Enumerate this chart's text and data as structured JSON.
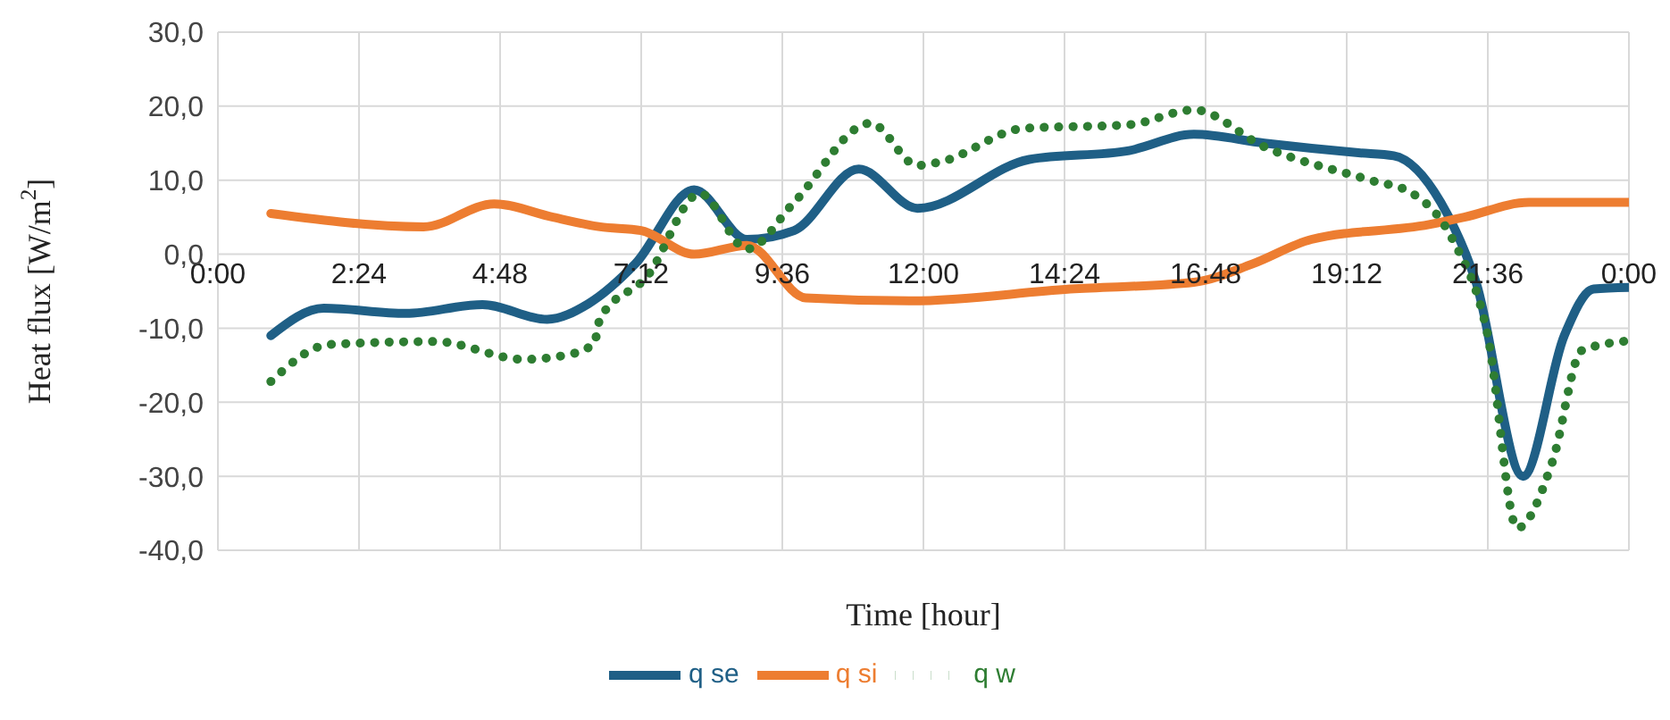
{
  "chart_data": {
    "type": "line",
    "xlabel": "Time [hour]",
    "ylabel": "Heat flux [W/m$^{2}$]",
    "xlim": [
      0,
      24
    ],
    "xticks": [
      {
        "value": 0,
        "label": "0:00"
      },
      {
        "value": 2.4,
        "label": "2:24"
      },
      {
        "value": 4.8,
        "label": "4:48"
      },
      {
        "value": 7.2,
        "label": "7:12"
      },
      {
        "value": 9.6,
        "label": "9:36"
      },
      {
        "value": 12,
        "label": "12:00"
      },
      {
        "value": 14.4,
        "label": "14:24"
      },
      {
        "value": 16.8,
        "label": "16:48"
      },
      {
        "value": 19.2,
        "label": "19:12"
      },
      {
        "value": 21.6,
        "label": "21:36"
      },
      {
        "value": 24,
        "label": "0:00"
      }
    ],
    "ylim": [
      -40,
      30
    ],
    "yticks": [
      {
        "value": -40,
        "label": "-40,0"
      },
      {
        "value": -30,
        "label": "-30,0"
      },
      {
        "value": -20,
        "label": "-20,0"
      },
      {
        "value": -10,
        "label": "-10,0"
      },
      {
        "value": 0,
        "label": "0,0"
      },
      {
        "value": 10,
        "label": "10,0"
      },
      {
        "value": 20,
        "label": "20,0"
      },
      {
        "value": 30,
        "label": "30,0"
      }
    ],
    "grid": true,
    "legend": "bottom",
    "marker": "none",
    "series": [
      {
        "name": "q se",
        "color": "#1f5f86",
        "line_style": "solid",
        "x": [
          0.9,
          1.8,
          3.2,
          4.5,
          5.6,
          6.3,
          7.1,
          8.1,
          9.0,
          9.8,
          10.9,
          11.9,
          13.8,
          15.5,
          16.6,
          17.8,
          19.4,
          20.0,
          20.8,
          21.4,
          22.2,
          22.9,
          23.4,
          24
        ],
        "values": [
          -11,
          -7.3,
          -8,
          -6.8,
          -8.8,
          -6.7,
          -1.3,
          8.7,
          2,
          3.2,
          11.5,
          6.2,
          12.8,
          14,
          16.2,
          15,
          13.7,
          13.3,
          7,
          -3.8,
          -30,
          -11,
          -4.7,
          -4.5
        ]
      },
      {
        "name": "q si",
        "color": "#ed7d31",
        "line_style": "solid",
        "x": [
          0.9,
          3.5,
          4.7,
          5.7,
          6.5,
          7.2,
          8.1,
          9.0,
          10.0,
          11.8,
          14.5,
          16.6,
          17.6,
          18.6,
          20.6,
          21.2,
          22.3,
          24
        ],
        "values": [
          5.5,
          3.7,
          6.8,
          5,
          3.7,
          3.2,
          0,
          1.2,
          -5.9,
          -6.3,
          -4.7,
          -3.8,
          -1.3,
          2,
          4,
          5,
          7,
          7
        ]
      },
      {
        "name": "q w",
        "color": "#2e7d32",
        "line_style": "dotted",
        "x": [
          0.9,
          1.9,
          3.7,
          5.2,
          6.0,
          6.4,
          6.5,
          7.3,
          8.2,
          9.0,
          9.8,
          11.1,
          11.9,
          12.3,
          13.7,
          15.5,
          16.6,
          17.8,
          19.6,
          20.3,
          21.0,
          21.6,
          22.1,
          22.7,
          23.2,
          24
        ],
        "values": [
          -17.2,
          -12.2,
          -11.8,
          -14.2,
          -13.5,
          -12,
          -8.7,
          -3,
          8.2,
          0.7,
          7,
          17.7,
          12,
          12.5,
          17,
          17.5,
          19.5,
          14.5,
          10,
          8.3,
          2,
          -11,
          -37,
          -28,
          -13,
          -11.7
        ]
      }
    ]
  }
}
